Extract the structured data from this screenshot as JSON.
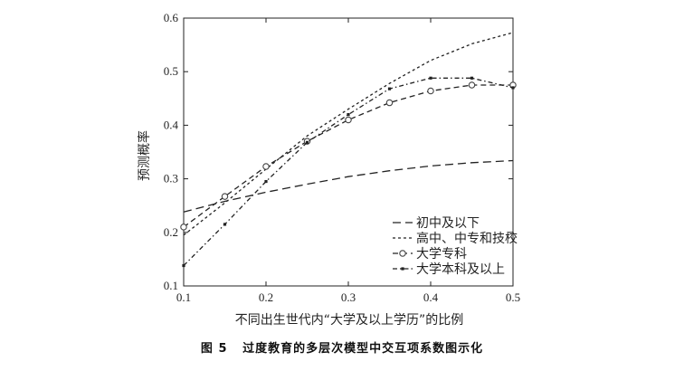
{
  "caption": "图 5   过度教育的多层次模型中交互项系数图示化",
  "chart_data": {
    "type": "line",
    "xlabel": "不同出生世代内“大学及以上学历”的比例",
    "ylabel": "预测概率",
    "xlim": [
      0.1,
      0.5
    ],
    "ylim": [
      0.1,
      0.6
    ],
    "xticks": [
      "0.1",
      "0.2",
      "0.3",
      "0.4",
      "0.5"
    ],
    "yticks": [
      "0.1",
      "0.2",
      "0.3",
      "0.4",
      "0.5",
      "0.6"
    ],
    "grid": false,
    "legend_position": "bottom-right",
    "series": [
      {
        "name": "初中及以下",
        "style": "long-dash",
        "marker": "none",
        "x": [
          0.1,
          0.15,
          0.2,
          0.25,
          0.3,
          0.35,
          0.4,
          0.45,
          0.5
        ],
        "values": [
          0.238,
          0.258,
          0.275,
          0.29,
          0.304,
          0.315,
          0.324,
          0.33,
          0.334
        ]
      },
      {
        "name": "高中、中专和技校",
        "style": "short-dash",
        "marker": "none",
        "x": [
          0.1,
          0.15,
          0.2,
          0.25,
          0.3,
          0.35,
          0.4,
          0.45,
          0.5
        ],
        "values": [
          0.195,
          0.255,
          0.318,
          0.38,
          0.43,
          0.478,
          0.521,
          0.552,
          0.573
        ]
      },
      {
        "name": "大学专科",
        "style": "dash",
        "marker": "circle",
        "x": [
          0.1,
          0.15,
          0.2,
          0.25,
          0.3,
          0.35,
          0.4,
          0.45,
          0.5
        ],
        "values": [
          0.21,
          0.267,
          0.323,
          0.37,
          0.41,
          0.442,
          0.464,
          0.475,
          0.475
        ]
      },
      {
        "name": "大学本科及以上",
        "style": "dash-dot",
        "marker": "dot",
        "x": [
          0.1,
          0.15,
          0.2,
          0.25,
          0.3,
          0.35,
          0.4,
          0.45,
          0.5
        ],
        "values": [
          0.138,
          0.215,
          0.295,
          0.368,
          0.42,
          0.468,
          0.488,
          0.488,
          0.47
        ]
      }
    ]
  }
}
